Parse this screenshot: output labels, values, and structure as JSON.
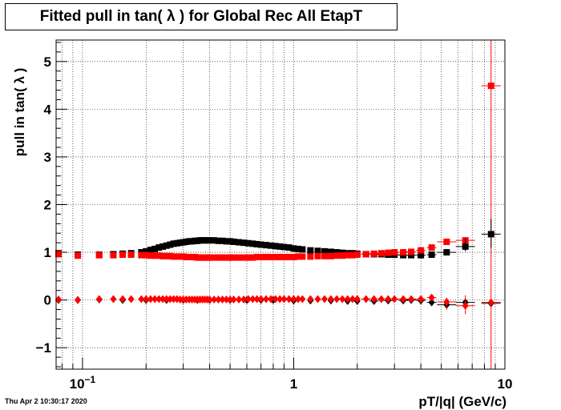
{
  "chart_data": {
    "type": "scatter",
    "title": "Fitted pull in tan( λ ) for Global Rec All EtapT",
    "xlabel": "pT/|q| (GeV/c)",
    "ylabel": "pull in tan( λ )",
    "xscale": "log",
    "xlim": [
      0.075,
      10
    ],
    "ylim": [
      -1.45,
      5.45
    ],
    "x_ticks": [
      {
        "value": 0.1,
        "label": "10",
        "sup": "−1"
      },
      {
        "value": 1,
        "label": "1",
        "sup": ""
      },
      {
        "value": 10,
        "label": "10",
        "sup": ""
      }
    ],
    "y_ticks": [
      {
        "value": -1,
        "label": "−1"
      },
      {
        "value": 0,
        "label": "0"
      },
      {
        "value": 1,
        "label": "1"
      },
      {
        "value": 2,
        "label": "2"
      },
      {
        "value": 3,
        "label": "3"
      },
      {
        "value": 4,
        "label": "4"
      },
      {
        "value": 5,
        "label": "5"
      }
    ],
    "grid": true,
    "legend": "none",
    "series": [
      {
        "color": "#000000",
        "marker": "square",
        "points": [
          [
            0.077,
            0.98
          ],
          [
            0.095,
            0.95
          ],
          [
            0.12,
            0.95
          ],
          [
            0.14,
            0.96
          ],
          [
            0.155,
            0.97
          ],
          [
            0.17,
            0.98
          ],
          [
            0.19,
            1.0
          ],
          [
            0.2,
            1.02
          ],
          [
            0.21,
            1.05
          ],
          [
            0.22,
            1.07
          ],
          [
            0.23,
            1.1
          ],
          [
            0.24,
            1.12
          ],
          [
            0.25,
            1.14
          ],
          [
            0.26,
            1.16
          ],
          [
            0.27,
            1.18
          ],
          [
            0.28,
            1.19
          ],
          [
            0.29,
            1.2
          ],
          [
            0.3,
            1.21
          ],
          [
            0.31,
            1.22
          ],
          [
            0.32,
            1.23
          ],
          [
            0.33,
            1.23
          ],
          [
            0.34,
            1.24
          ],
          [
            0.35,
            1.24
          ],
          [
            0.36,
            1.25
          ],
          [
            0.37,
            1.25
          ],
          [
            0.38,
            1.25
          ],
          [
            0.39,
            1.25
          ],
          [
            0.4,
            1.25
          ],
          [
            0.42,
            1.25
          ],
          [
            0.44,
            1.24
          ],
          [
            0.46,
            1.24
          ],
          [
            0.48,
            1.23
          ],
          [
            0.5,
            1.23
          ],
          [
            0.52,
            1.22
          ],
          [
            0.55,
            1.21
          ],
          [
            0.58,
            1.2
          ],
          [
            0.61,
            1.19
          ],
          [
            0.64,
            1.18
          ],
          [
            0.67,
            1.17
          ],
          [
            0.7,
            1.16
          ],
          [
            0.74,
            1.15
          ],
          [
            0.78,
            1.14
          ],
          [
            0.82,
            1.13
          ],
          [
            0.86,
            1.12
          ],
          [
            0.9,
            1.11
          ],
          [
            0.95,
            1.1
          ],
          [
            1.0,
            1.08
          ],
          [
            1.05,
            1.07
          ],
          [
            1.1,
            1.06
          ],
          [
            1.2,
            1.04
          ],
          [
            1.3,
            1.03
          ],
          [
            1.4,
            1.02
          ],
          [
            1.5,
            1.01
          ],
          [
            1.6,
            1.0
          ],
          [
            1.7,
            0.99
          ],
          [
            1.8,
            0.98
          ],
          [
            1.9,
            0.98
          ],
          [
            2.0,
            0.97
          ],
          [
            2.2,
            0.96
          ],
          [
            2.4,
            0.96
          ],
          [
            2.6,
            0.96
          ],
          [
            2.8,
            0.95
          ],
          [
            3.0,
            0.95
          ],
          [
            3.3,
            0.94
          ],
          [
            3.6,
            0.94
          ],
          [
            4.0,
            0.94
          ],
          [
            4.5,
            0.95
          ],
          [
            5.3,
            1.0
          ],
          [
            6.5,
            1.12
          ],
          [
            8.6,
            1.38
          ]
        ]
      },
      {
        "color": "#ff0000",
        "marker": "square",
        "points": [
          [
            0.077,
            0.96
          ],
          [
            0.095,
            0.93
          ],
          [
            0.12,
            0.94
          ],
          [
            0.14,
            0.94
          ],
          [
            0.155,
            0.95
          ],
          [
            0.17,
            0.95
          ],
          [
            0.19,
            0.94
          ],
          [
            0.2,
            0.94
          ],
          [
            0.21,
            0.93
          ],
          [
            0.22,
            0.93
          ],
          [
            0.23,
            0.93
          ],
          [
            0.24,
            0.92
          ],
          [
            0.25,
            0.92
          ],
          [
            0.26,
            0.92
          ],
          [
            0.27,
            0.91
          ],
          [
            0.28,
            0.91
          ],
          [
            0.29,
            0.91
          ],
          [
            0.3,
            0.91
          ],
          [
            0.31,
            0.9
          ],
          [
            0.32,
            0.9
          ],
          [
            0.33,
            0.9
          ],
          [
            0.34,
            0.9
          ],
          [
            0.35,
            0.89
          ],
          [
            0.36,
            0.89
          ],
          [
            0.37,
            0.89
          ],
          [
            0.38,
            0.89
          ],
          [
            0.39,
            0.89
          ],
          [
            0.4,
            0.89
          ],
          [
            0.42,
            0.89
          ],
          [
            0.44,
            0.89
          ],
          [
            0.46,
            0.89
          ],
          [
            0.48,
            0.89
          ],
          [
            0.5,
            0.89
          ],
          [
            0.52,
            0.89
          ],
          [
            0.55,
            0.89
          ],
          [
            0.58,
            0.89
          ],
          [
            0.61,
            0.89
          ],
          [
            0.64,
            0.89
          ],
          [
            0.67,
            0.9
          ],
          [
            0.7,
            0.9
          ],
          [
            0.74,
            0.9
          ],
          [
            0.78,
            0.9
          ],
          [
            0.82,
            0.9
          ],
          [
            0.86,
            0.9
          ],
          [
            0.9,
            0.9
          ],
          [
            0.95,
            0.9
          ],
          [
            1.0,
            0.9
          ],
          [
            1.05,
            0.91
          ],
          [
            1.1,
            0.91
          ],
          [
            1.2,
            0.91
          ],
          [
            1.3,
            0.92
          ],
          [
            1.4,
            0.92
          ],
          [
            1.5,
            0.92
          ],
          [
            1.6,
            0.93
          ],
          [
            1.7,
            0.93
          ],
          [
            1.8,
            0.94
          ],
          [
            1.9,
            0.94
          ],
          [
            2.0,
            0.95
          ],
          [
            2.2,
            0.96
          ],
          [
            2.4,
            0.97
          ],
          [
            2.6,
            0.98
          ],
          [
            2.8,
            0.99
          ],
          [
            3.0,
            1.0
          ],
          [
            3.3,
            1.0
          ],
          [
            3.6,
            1.01
          ],
          [
            4.0,
            1.04
          ],
          [
            4.5,
            1.1
          ],
          [
            5.3,
            1.22
          ],
          [
            6.5,
            1.25
          ],
          [
            8.6,
            4.49
          ]
        ]
      },
      {
        "color": "#000000",
        "marker": "diamond",
        "points": [
          [
            0.077,
            0.0
          ],
          [
            0.095,
            0.0
          ],
          [
            0.12,
            0.01
          ],
          [
            0.155,
            0.0
          ],
          [
            0.2,
            0.0
          ],
          [
            0.25,
            0.0
          ],
          [
            0.3,
            0.0
          ],
          [
            0.35,
            0.0
          ],
          [
            0.4,
            0.0
          ],
          [
            0.5,
            0.0
          ],
          [
            0.6,
            0.0
          ],
          [
            0.7,
            0.0
          ],
          [
            0.8,
            0.0
          ],
          [
            1.0,
            -0.01
          ],
          [
            1.2,
            -0.01
          ],
          [
            1.5,
            -0.01
          ],
          [
            1.8,
            -0.02
          ],
          [
            2.0,
            -0.02
          ],
          [
            2.4,
            -0.02
          ],
          [
            2.8,
            -0.01
          ],
          [
            3.3,
            -0.01
          ],
          [
            3.6,
            0.0
          ],
          [
            4.0,
            -0.01
          ],
          [
            4.5,
            -0.05
          ],
          [
            5.3,
            -0.1
          ],
          [
            6.5,
            -0.05
          ],
          [
            8.6,
            -0.07
          ]
        ]
      },
      {
        "color": "#ff0000",
        "marker": "diamond",
        "points": [
          [
            0.077,
            0.01
          ],
          [
            0.095,
            0.0
          ],
          [
            0.12,
            0.02
          ],
          [
            0.14,
            0.02
          ],
          [
            0.155,
            0.02
          ],
          [
            0.17,
            0.02
          ],
          [
            0.19,
            0.02
          ],
          [
            0.2,
            0.02
          ],
          [
            0.21,
            0.02
          ],
          [
            0.22,
            0.02
          ],
          [
            0.23,
            0.02
          ],
          [
            0.24,
            0.02
          ],
          [
            0.25,
            0.02
          ],
          [
            0.26,
            0.02
          ],
          [
            0.27,
            0.02
          ],
          [
            0.28,
            0.02
          ],
          [
            0.29,
            0.01
          ],
          [
            0.3,
            0.01
          ],
          [
            0.31,
            0.01
          ],
          [
            0.32,
            0.01
          ],
          [
            0.33,
            0.01
          ],
          [
            0.34,
            0.01
          ],
          [
            0.35,
            0.01
          ],
          [
            0.36,
            0.01
          ],
          [
            0.37,
            0.01
          ],
          [
            0.38,
            0.01
          ],
          [
            0.39,
            0.01
          ],
          [
            0.4,
            0.01
          ],
          [
            0.42,
            0.01
          ],
          [
            0.44,
            0.01
          ],
          [
            0.46,
            0.01
          ],
          [
            0.48,
            0.01
          ],
          [
            0.5,
            0.01
          ],
          [
            0.52,
            0.01
          ],
          [
            0.55,
            0.01
          ],
          [
            0.58,
            0.01
          ],
          [
            0.61,
            0.02
          ],
          [
            0.64,
            0.02
          ],
          [
            0.67,
            0.02
          ],
          [
            0.7,
            0.02
          ],
          [
            0.74,
            0.02
          ],
          [
            0.78,
            0.02
          ],
          [
            0.82,
            0.02
          ],
          [
            0.86,
            0.02
          ],
          [
            0.9,
            0.02
          ],
          [
            0.95,
            0.02
          ],
          [
            1.0,
            0.02
          ],
          [
            1.05,
            0.02
          ],
          [
            1.1,
            0.02
          ],
          [
            1.2,
            0.02
          ],
          [
            1.3,
            0.02
          ],
          [
            1.4,
            0.02
          ],
          [
            1.5,
            0.02
          ],
          [
            1.6,
            0.02
          ],
          [
            1.7,
            0.02
          ],
          [
            1.8,
            0.02
          ],
          [
            1.9,
            0.02
          ],
          [
            2.0,
            0.02
          ],
          [
            2.2,
            0.02
          ],
          [
            2.4,
            0.02
          ],
          [
            2.6,
            0.02
          ],
          [
            2.8,
            0.02
          ],
          [
            3.0,
            0.02
          ],
          [
            3.3,
            0.02
          ],
          [
            3.6,
            0.02
          ],
          [
            4.0,
            0.02
          ],
          [
            4.5,
            0.05
          ],
          [
            5.3,
            -0.04
          ],
          [
            6.5,
            -0.12
          ],
          [
            8.6,
            -0.05
          ]
        ]
      }
    ]
  },
  "footer": {
    "timestamp": "Thu Apr  2 10:30:17 2020"
  }
}
